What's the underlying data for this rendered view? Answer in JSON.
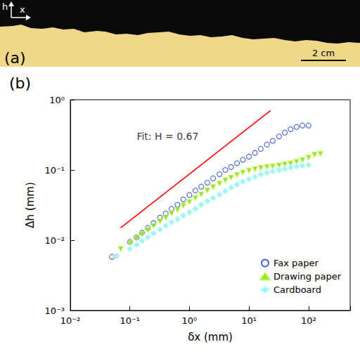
{
  "photo": {
    "panel_label": "(a)",
    "vertical_axis": "h",
    "horizontal_axis": "x",
    "scale_bar": "2 cm"
  },
  "chart_data": {
    "type": "scatter",
    "panel_label": "(b)",
    "x_label": "δx (mm)",
    "y_label": "Δh (mm)",
    "log": true,
    "grid": false,
    "legend": "lower right",
    "xlim": [
      0.01,
      500
    ],
    "ylim": [
      0.001,
      1
    ],
    "xticks": [
      {
        "value": 0.01,
        "label": "10⁻²"
      },
      {
        "value": 0.1,
        "label": "10⁻¹"
      },
      {
        "value": 1,
        "label": "10⁰"
      },
      {
        "value": 10,
        "label": "10¹"
      },
      {
        "value": 100,
        "label": "10²"
      }
    ],
    "yticks": [
      {
        "value": 0.001,
        "label": "10⁻³"
      },
      {
        "value": 0.01,
        "label": "10⁻²"
      },
      {
        "value": 0.1,
        "label": "10⁻¹"
      },
      {
        "value": 1,
        "label": "10⁰"
      }
    ],
    "annotations": [
      {
        "text": "Fit: H = 0.67",
        "x": 0.43,
        "y": 0.3
      }
    ],
    "series": [
      {
        "type": "line",
        "color": "#ff0000",
        "line_style": "solid",
        "x": [
          0.07,
          23
        ],
        "values": [
          0.015,
          0.7
        ]
      },
      {
        "name": "Fax paper",
        "type": "scatter",
        "color": "#1b3fd6",
        "marker": "open_circle",
        "x": [
          0.05,
          0.1,
          0.13,
          0.16,
          0.2,
          0.25,
          0.32,
          0.4,
          0.5,
          0.63,
          0.79,
          1,
          1.26,
          1.58,
          2,
          2.5,
          3.2,
          4,
          5,
          6.3,
          7.9,
          10,
          12.6,
          15.8,
          20,
          25,
          32,
          40,
          50,
          63,
          79,
          100
        ],
        "values": [
          0.0058,
          0.0095,
          0.011,
          0.0128,
          0.015,
          0.0175,
          0.021,
          0.024,
          0.028,
          0.032,
          0.038,
          0.044,
          0.051,
          0.058,
          0.066,
          0.076,
          0.087,
          0.1,
          0.11,
          0.125,
          0.14,
          0.155,
          0.175,
          0.2,
          0.23,
          0.26,
          0.3,
          0.34,
          0.38,
          0.41,
          0.43,
          0.43
        ]
      },
      {
        "name": "Drawing paper",
        "type": "scatter",
        "color": "#7ed321",
        "marker": "triangle_down",
        "x": [
          0.07,
          0.1,
          0.13,
          0.16,
          0.2,
          0.25,
          0.32,
          0.4,
          0.5,
          0.63,
          0.79,
          1,
          1.26,
          1.58,
          2,
          2.5,
          3.2,
          4,
          5,
          6.3,
          7.9,
          10,
          12.6,
          15.8,
          20,
          25,
          32,
          40,
          50,
          63,
          79,
          100,
          126,
          158
        ],
        "values": [
          0.0075,
          0.0092,
          0.0108,
          0.0122,
          0.014,
          0.016,
          0.0185,
          0.021,
          0.024,
          0.027,
          0.031,
          0.035,
          0.04,
          0.045,
          0.051,
          0.057,
          0.064,
          0.071,
          0.078,
          0.085,
          0.092,
          0.098,
          0.103,
          0.107,
          0.11,
          0.113,
          0.116,
          0.12,
          0.124,
          0.13,
          0.138,
          0.15,
          0.165,
          0.17
        ]
      },
      {
        "name": "Cardboard",
        "type": "scatter",
        "color": "#8ef0ee",
        "marker": "diamond",
        "x": [
          0.06,
          0.1,
          0.13,
          0.16,
          0.2,
          0.25,
          0.32,
          0.4,
          0.5,
          0.63,
          0.79,
          1,
          1.26,
          1.58,
          2,
          2.5,
          3.2,
          4,
          5,
          6.3,
          7.9,
          10,
          12.6,
          15.8,
          20,
          25,
          32,
          40,
          50,
          63,
          79,
          100
        ],
        "values": [
          0.006,
          0.0075,
          0.0086,
          0.0098,
          0.011,
          0.0125,
          0.0142,
          0.016,
          0.018,
          0.02,
          0.0225,
          0.025,
          0.028,
          0.032,
          0.036,
          0.04,
          0.045,
          0.05,
          0.056,
          0.062,
          0.068,
          0.074,
          0.08,
          0.086,
          0.091,
          0.096,
          0.1,
          0.104,
          0.108,
          0.112,
          0.115,
          0.118
        ]
      }
    ]
  }
}
